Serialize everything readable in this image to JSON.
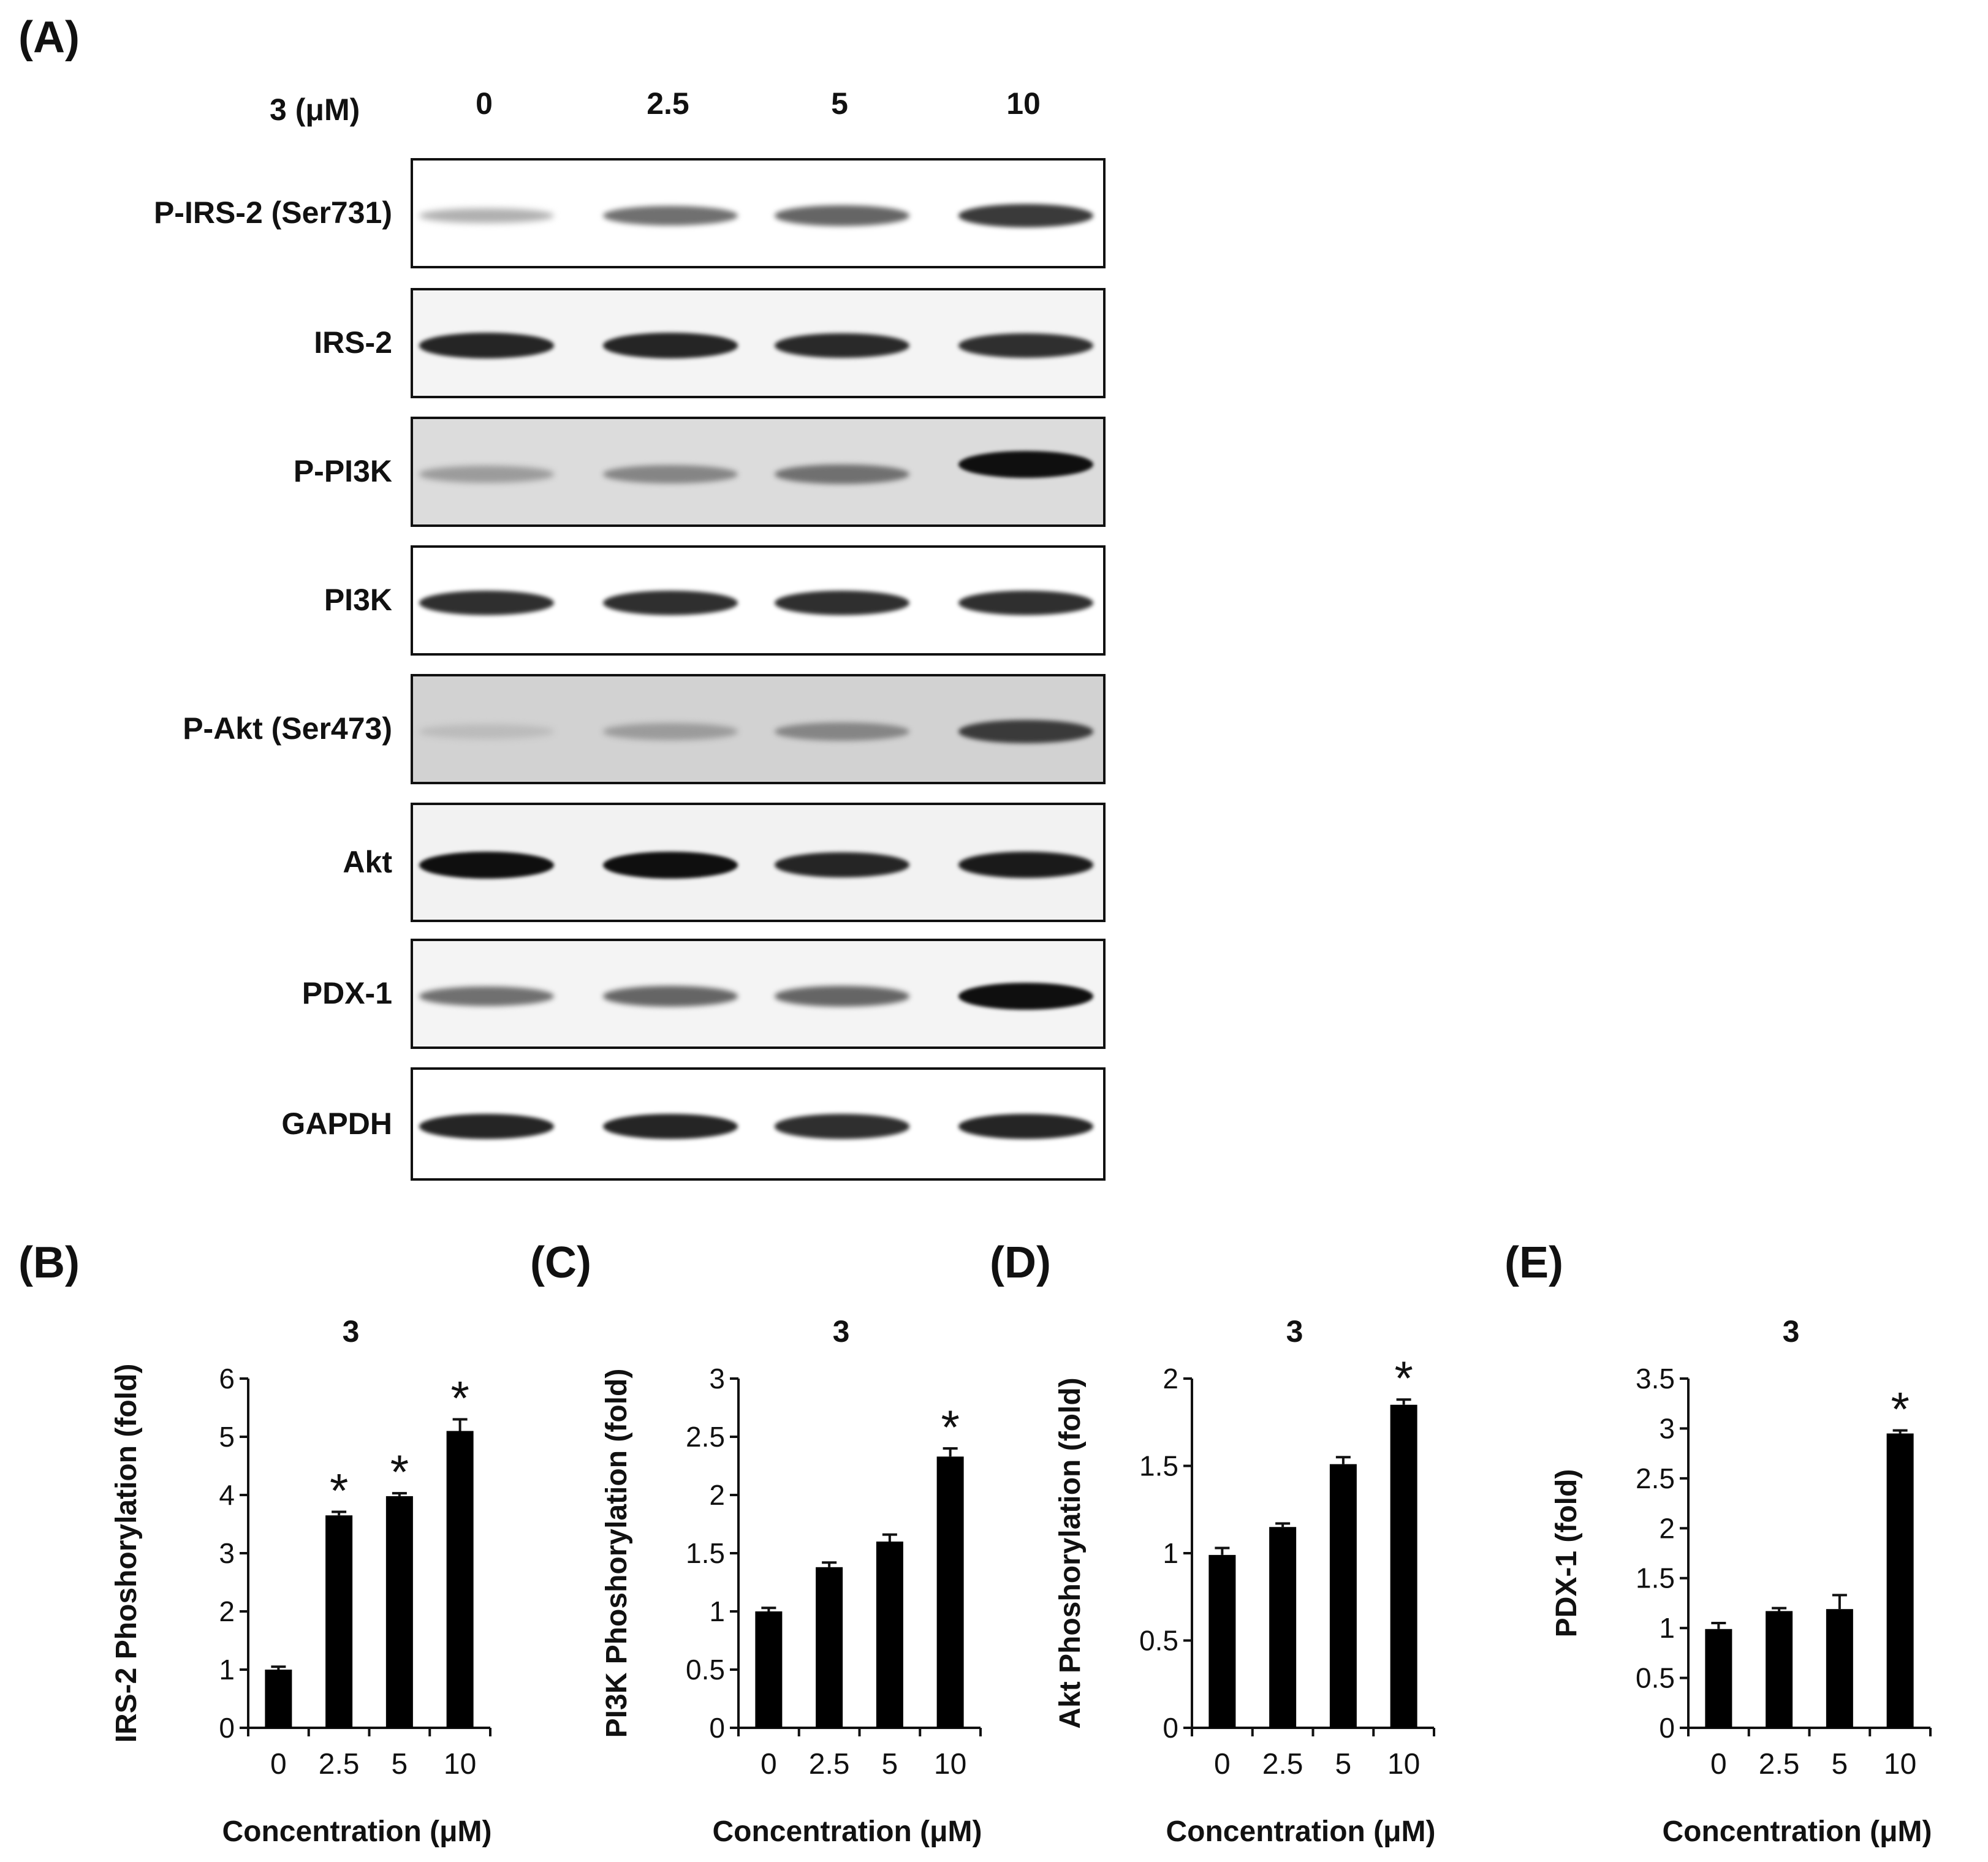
{
  "panel_a": {
    "letter": "(A)",
    "treatment_label": "3 (μM)",
    "lanes": [
      "0",
      "2.5",
      "5",
      "10"
    ],
    "blots": [
      {
        "label": "P-IRS-2 (Ser731)",
        "intensity": [
          0.25,
          0.55,
          0.6,
          0.8
        ],
        "background": "#ffffff"
      },
      {
        "label": "IRS-2",
        "intensity": [
          0.9,
          0.9,
          0.88,
          0.85
        ],
        "background": "#f4f4f4"
      },
      {
        "label": "P-PI3K",
        "intensity": [
          0.35,
          0.45,
          0.55,
          1.0
        ],
        "background": "#dcdcdc"
      },
      {
        "label": "PI3K",
        "intensity": [
          0.85,
          0.85,
          0.85,
          0.85
        ],
        "background": "#ffffff"
      },
      {
        "label": "P-Akt (Ser473)",
        "intensity": [
          0.2,
          0.35,
          0.45,
          0.8
        ],
        "background": "#d2d2d2"
      },
      {
        "label": "Akt",
        "intensity": [
          1.0,
          1.0,
          0.9,
          0.95
        ],
        "background": "#f2f2f2"
      },
      {
        "label": "PDX-1",
        "intensity": [
          0.55,
          0.6,
          0.6,
          1.0
        ],
        "background": "#f4f4f4"
      },
      {
        "label": "GAPDH",
        "intensity": [
          0.9,
          0.9,
          0.85,
          0.9
        ],
        "background": "#ffffff"
      }
    ]
  },
  "chart_data": [
    {
      "panel": "(B)",
      "type": "bar",
      "title": "3",
      "categories": [
        "0",
        "2.5",
        "5",
        "10"
      ],
      "values": [
        1.0,
        3.65,
        3.98,
        5.1
      ],
      "errors": [
        0.05,
        0.06,
        0.05,
        0.2
      ],
      "significant": [
        false,
        true,
        true,
        true
      ],
      "ylabel": "IRS-2 Phoshorylation (fold)",
      "xlabel": "Concentration (μM)",
      "ylim": [
        0,
        6
      ],
      "yticks": [
        "0",
        "1",
        "2",
        "3",
        "4",
        "5",
        "6"
      ],
      "ytick_values": [
        0,
        1,
        2,
        3,
        4,
        5,
        6
      ]
    },
    {
      "panel": "(C)",
      "type": "bar",
      "title": "3",
      "categories": [
        "0",
        "2.5",
        "5",
        "10"
      ],
      "values": [
        1.0,
        1.38,
        1.6,
        2.33
      ],
      "errors": [
        0.03,
        0.04,
        0.06,
        0.07
      ],
      "significant": [
        false,
        false,
        false,
        true
      ],
      "ylabel": "PI3K Phoshorylation (fold)",
      "xlabel": "Concentration (μM)",
      "ylim": [
        0,
        3
      ],
      "yticks": [
        "0",
        "0.5",
        "1",
        "1.5",
        "2",
        "2.5",
        "3"
      ],
      "ytick_values": [
        0,
        0.5,
        1,
        1.5,
        2,
        2.5,
        3
      ]
    },
    {
      "panel": "(D)",
      "type": "bar",
      "title": "3",
      "categories": [
        "0",
        "2.5",
        "5",
        "10"
      ],
      "values": [
        0.99,
        1.15,
        1.51,
        1.85
      ],
      "errors": [
        0.04,
        0.02,
        0.04,
        0.03
      ],
      "significant": [
        false,
        false,
        false,
        true
      ],
      "ylabel": "Akt Phoshorylation (fold)",
      "xlabel": "Concentration (μM)",
      "ylim": [
        0,
        2
      ],
      "yticks": [
        "0",
        "0.5",
        "1",
        "1.5",
        "2"
      ],
      "ytick_values": [
        0,
        0.5,
        1,
        1.5,
        2
      ]
    },
    {
      "panel": "(E)",
      "type": "bar",
      "title": "3",
      "categories": [
        "0",
        "2.5",
        "5",
        "10"
      ],
      "values": [
        0.99,
        1.17,
        1.19,
        2.95
      ],
      "errors": [
        0.06,
        0.03,
        0.14,
        0.03
      ],
      "significant": [
        false,
        false,
        false,
        true
      ],
      "ylabel": "PDX-1 (fold)",
      "xlabel": "Concentration (μM)",
      "ylim": [
        0,
        3.5
      ],
      "yticks": [
        "0",
        "0.5",
        "1",
        "1.5",
        "2",
        "2.5",
        "3",
        "3.5"
      ],
      "ytick_values": [
        0,
        0.5,
        1,
        1.5,
        2,
        2.5,
        3,
        3.5
      ]
    }
  ],
  "significance_marker": "*"
}
